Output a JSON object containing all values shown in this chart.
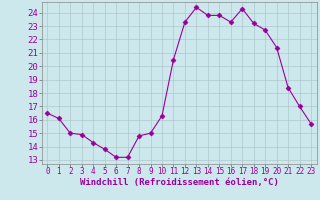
{
  "x": [
    0,
    1,
    2,
    3,
    4,
    5,
    6,
    7,
    8,
    9,
    10,
    11,
    12,
    13,
    14,
    15,
    16,
    17,
    18,
    19,
    20,
    21,
    22,
    23
  ],
  "y": [
    16.5,
    16.1,
    15.0,
    14.9,
    14.3,
    13.8,
    13.2,
    13.2,
    14.8,
    15.0,
    16.3,
    20.5,
    23.3,
    24.4,
    23.8,
    23.8,
    23.3,
    24.3,
    23.2,
    22.7,
    21.4,
    18.4,
    17.0,
    15.7
  ],
  "line_color": "#990099",
  "marker": "D",
  "marker_size": 2.5,
  "bg_color": "#cce8ed",
  "grid_color": "#b0c8cc",
  "xlabel": "Windchill (Refroidissement éolien,°C)",
  "ylabel_ticks": [
    13,
    14,
    15,
    16,
    17,
    18,
    19,
    20,
    21,
    22,
    23,
    24
  ],
  "ylim": [
    12.7,
    24.8
  ],
  "xlim": [
    -0.5,
    23.5
  ],
  "tick_color": "#990099",
  "label_color": "#990099",
  "xlabel_fontsize": 6.5,
  "ytick_fontsize": 6.5,
  "xtick_fontsize": 5.5
}
